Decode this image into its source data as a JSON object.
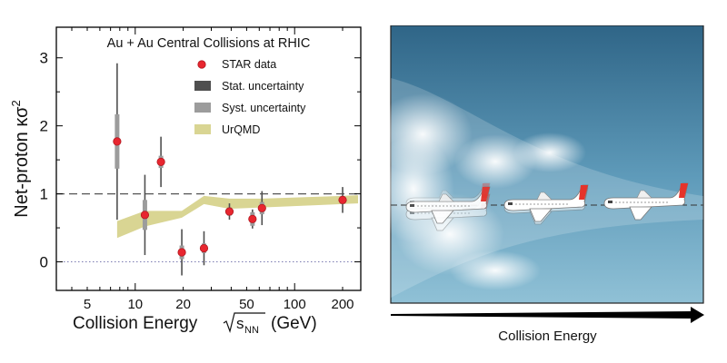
{
  "chart_data": {
    "type": "scatter",
    "title": "Au + Au Central Collisions at RHIC",
    "xlabel_main": "Collision Energy",
    "xlabel_sqrt": "s",
    "xlabel_sub": "NN",
    "xlabel_unit": "(GeV)",
    "ylabel_main": "Net-proton κσ",
    "ylabel_sup": "2",
    "x_scale": "log",
    "xlim": [
      3.2,
      260
    ],
    "ylim": [
      -0.42,
      3.45
    ],
    "x_ticks": [
      5,
      10,
      20,
      50,
      100,
      200
    ],
    "y_ticks": [
      0,
      1,
      2,
      3
    ],
    "reference_lines": [
      {
        "y": 1,
        "style": "dashed"
      },
      {
        "y": 0,
        "style": "dotted"
      }
    ],
    "legend": {
      "placement": "top-right",
      "entries": [
        "STAR data",
        "Stat. uncertainty",
        "Syst. uncertainty",
        "UrQMD"
      ]
    },
    "series": [
      {
        "name": "STAR data",
        "x": [
          7.7,
          11.5,
          14.5,
          19.6,
          27,
          39,
          54.4,
          62.4,
          200
        ],
        "y": [
          1.77,
          0.69,
          1.47,
          0.14,
          0.2,
          0.74,
          0.63,
          0.79,
          0.91
        ],
        "stat_err": [
          1.15,
          0.59,
          0.37,
          0.34,
          0.25,
          0.12,
          0.14,
          0.25,
          0.19
        ],
        "syst_err": [
          0.4,
          0.22,
          0.09,
          0.1,
          0.07,
          0.06,
          0.1,
          0.09,
          0.06
        ]
      },
      {
        "name": "UrQMD",
        "x": [
          7.7,
          11.5,
          19.6,
          27,
          39,
          62.4,
          200,
          250
        ],
        "low": [
          0.35,
          0.52,
          0.65,
          0.85,
          0.78,
          0.8,
          0.85,
          0.86
        ],
        "high": [
          0.6,
          0.75,
          0.75,
          0.97,
          0.93,
          0.93,
          0.97,
          0.98
        ]
      }
    ],
    "colors": {
      "marker": "#e8262f",
      "stat": "#4f4f4f",
      "syst": "#9c9c9c",
      "urqmd": "#d9d593"
    }
  },
  "illustration": {
    "caption": "Collision Energy",
    "colors": {
      "sky_top": "#2f6587",
      "sky_bottom": "#88b9d1",
      "plane_body": "#ffffff",
      "plane_tail": "#e5332a"
    }
  }
}
